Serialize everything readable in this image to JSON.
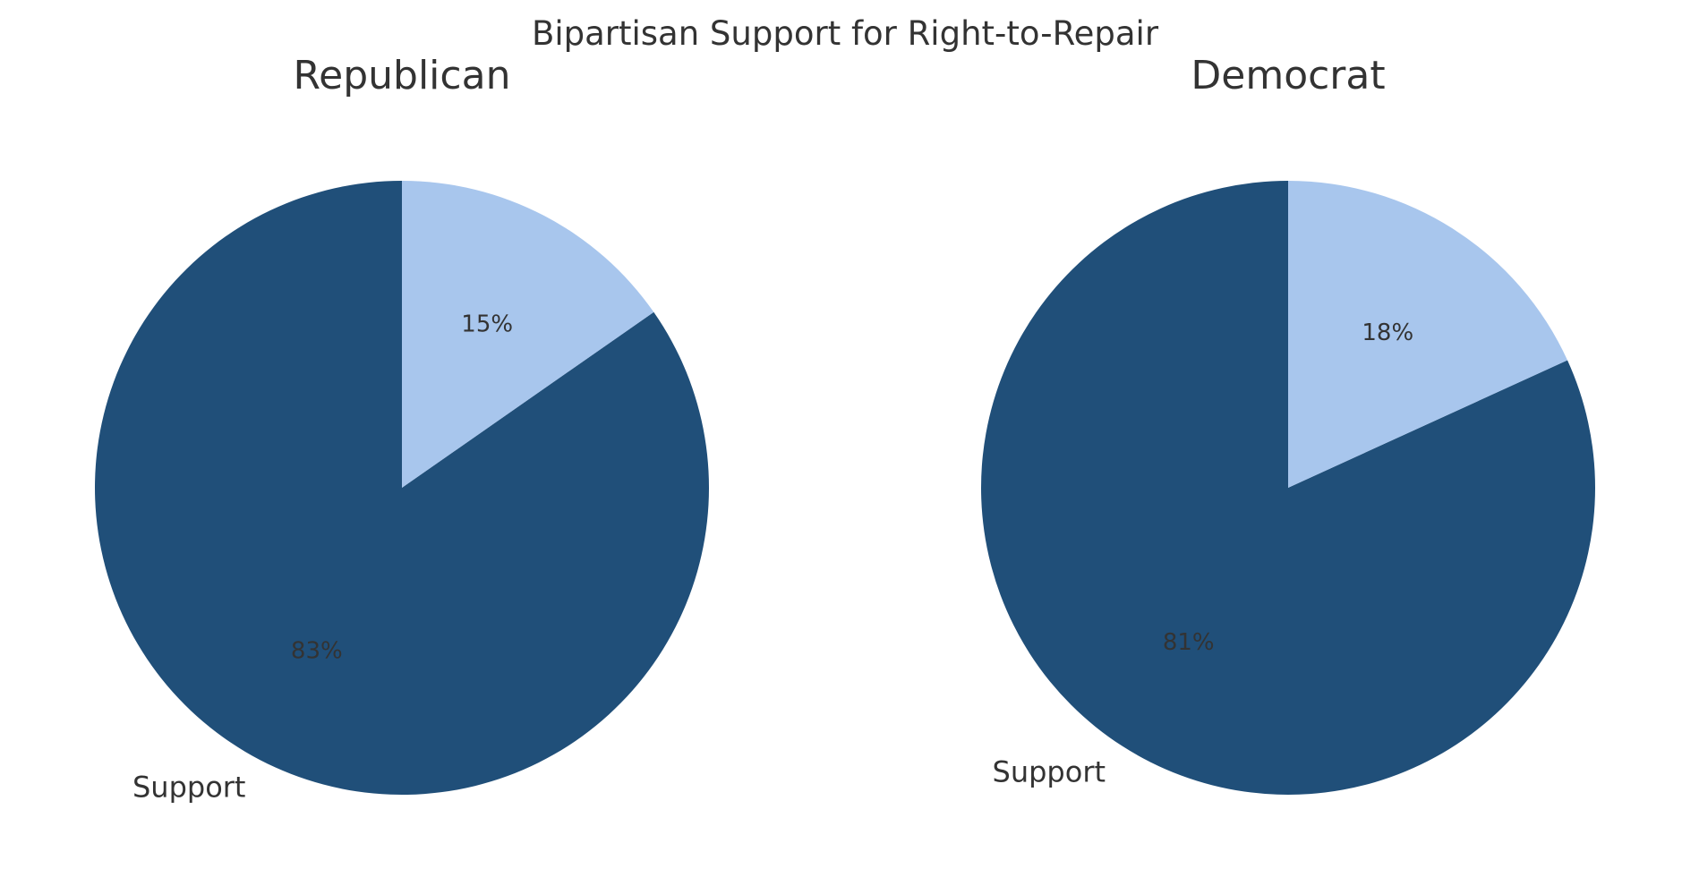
{
  "title": "Bipartisan Support for Right-to-Repair",
  "chart_data": [
    {
      "type": "pie",
      "title": "Republican",
      "labels": [
        "Support",
        ""
      ],
      "values": [
        83,
        15
      ],
      "display_pct": [
        "83%",
        "15%"
      ],
      "colors": [
        "#204f79",
        "#a8c6ed"
      ],
      "start_angle_deg": 90,
      "direction": "counterclockwise"
    },
    {
      "type": "pie",
      "title": "Democrat",
      "labels": [
        "Support",
        ""
      ],
      "values": [
        81,
        18
      ],
      "display_pct": [
        "81%",
        "18%"
      ],
      "colors": [
        "#204f79",
        "#a8c6ed"
      ],
      "start_angle_deg": 90,
      "direction": "counterclockwise"
    }
  ]
}
